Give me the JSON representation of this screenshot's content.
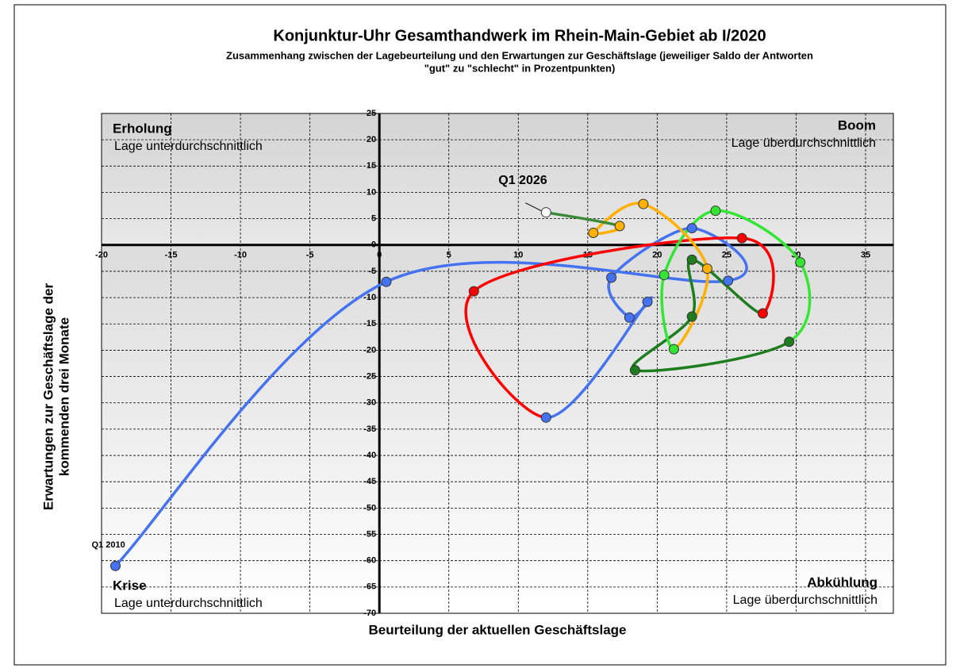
{
  "chart_data": {
    "type": "line",
    "title": "Konjunktur-Uhr Gesamthandwerk im Rhein-Main-Gebiet ab I/2020",
    "subtitle": [
      "Zusammenhang zwischen der Lagebeurteilung und den Erwartungen zur Geschäftslage (jeweiliger Saldo der Antworten",
      "\"gut\" zu \"schlecht\" in Prozentpunkten)"
    ],
    "x_label": "Beurteilung der aktuellen Geschäftslage",
    "y_label": [
      "Erwartungen zur Geschäftslage der",
      "kommenden drei Monate"
    ],
    "xlim": [
      -20,
      37
    ],
    "ylim": [
      -70,
      25
    ],
    "xticks": [
      -20,
      -15,
      -10,
      -5,
      0,
      5,
      10,
      15,
      20,
      25,
      30,
      35
    ],
    "yticks": [
      25,
      20,
      15,
      10,
      5,
      0,
      -5,
      -10,
      -15,
      -20,
      -25,
      -30,
      -35,
      -40,
      -45,
      -50,
      -55,
      -60,
      -65,
      -70
    ],
    "grid": true,
    "quadrants": [
      {
        "title": "Erholung",
        "text": "Lage unterdurchschnittlich"
      },
      {
        "title": "Boom",
        "text": "Lage überdurchschnittlich"
      },
      {
        "title": "Krise",
        "text": "Lage unterdurchschnittlich"
      },
      {
        "title": "Abkühlung",
        "text": "Lage überdurchschnittlich"
      }
    ],
    "annotations": [
      "Q1 2010",
      "Q1 2026"
    ],
    "series": [
      {
        "color": "#4472f0",
        "x": [
          -19,
          0.5,
          25.1,
          22.5,
          16.7,
          18,
          19.3,
          12
        ],
        "y": [
          -61,
          -7,
          -6.8,
          3.2,
          -6.2,
          -13.8,
          -10.8,
          -32.8
        ]
      },
      {
        "color": "#ff0000",
        "x": [
          6.8,
          26.1,
          27.6
        ],
        "y": [
          -8.8,
          1.3,
          -13
        ]
      },
      {
        "color": "#1e7d1e",
        "x": [
          22.5,
          22.5,
          18.4,
          29.5
        ],
        "y": [
          -2.8,
          -13.6,
          -23.8,
          -18.4
        ]
      },
      {
        "color": "#33e633",
        "x": [
          30.3,
          24.2,
          20.5,
          21.2
        ],
        "y": [
          -3.3,
          6.5,
          -5.7,
          -19.8
        ]
      },
      {
        "color": "#ffb000",
        "x": [
          23.6,
          19,
          15.4,
          17.3
        ],
        "y": [
          -4.5,
          7.8,
          2.3,
          3.6
        ]
      },
      {
        "color": "#3a8a3a",
        "marker_color": "#ffffff",
        "x": [
          12
        ],
        "y": [
          6.2
        ]
      }
    ]
  }
}
